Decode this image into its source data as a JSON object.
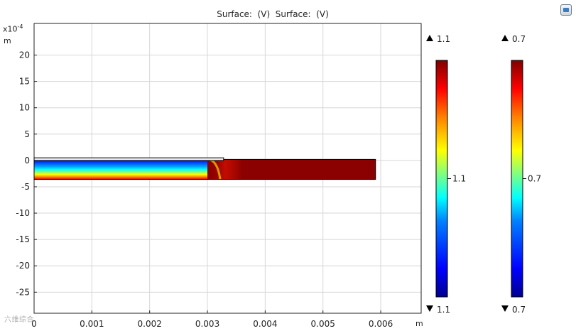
{
  "chart_data": {
    "type": "heatmap",
    "title": "Surface:  (V)  Surface:  (V)",
    "x_unit": "m",
    "y_unit": "m",
    "y_exponent_base": "x10",
    "y_exponent_power": "-4",
    "xlim": [
      0,
      0.0067
    ],
    "ylim": [
      -29,
      26
    ],
    "x_ticks": [
      "0",
      "0.001",
      "0.002",
      "0.003",
      "0.004",
      "0.005",
      "0.006"
    ],
    "x_tick_values": [
      0,
      0.001,
      0.002,
      0.003,
      0.004,
      0.005,
      0.006
    ],
    "y_ticks": [
      "20",
      "15",
      "10",
      "5",
      "0",
      "-5",
      "-10",
      "-15",
      "-20",
      "-25"
    ],
    "y_tick_values": [
      20,
      15,
      10,
      5,
      0,
      -5,
      -10,
      -15,
      -20,
      -25
    ],
    "domains": [
      {
        "name": "domain-left-thin",
        "x": [
          0,
          0.00328
        ],
        "y": [
          0,
          0.5
        ]
      },
      {
        "name": "domain-main",
        "x": [
          0,
          0.00591
        ],
        "y": [
          -3.6,
          0.2
        ]
      }
    ],
    "field": {
      "low_region_x": [
        0,
        0.0033
      ],
      "transition_x": [
        0.003,
        0.0036
      ],
      "high_region_x": [
        0.0036,
        0.00591
      ]
    },
    "colorbars": [
      {
        "max_label": "1.1",
        "min_label": "1.1",
        "mid_label": "1.1",
        "colormap": "rainbow"
      },
      {
        "max_label": "0.7",
        "min_label": "0.7",
        "mid_label": "0.7",
        "colormap": "rainbow"
      }
    ],
    "grid": true
  },
  "colors": {
    "grid": "#d6d6d6",
    "axis": "#222222",
    "colormap": [
      "#00008f",
      "#0000ff",
      "#0080ff",
      "#00ffff",
      "#80ff80",
      "#ffff00",
      "#ff8000",
      "#ff0000",
      "#800000"
    ]
  },
  "icons": {
    "corner": "window-icon",
    "up_marker": "triangle-up-icon",
    "down_marker": "triangle-down-icon"
  },
  "watermark": "六维综合"
}
